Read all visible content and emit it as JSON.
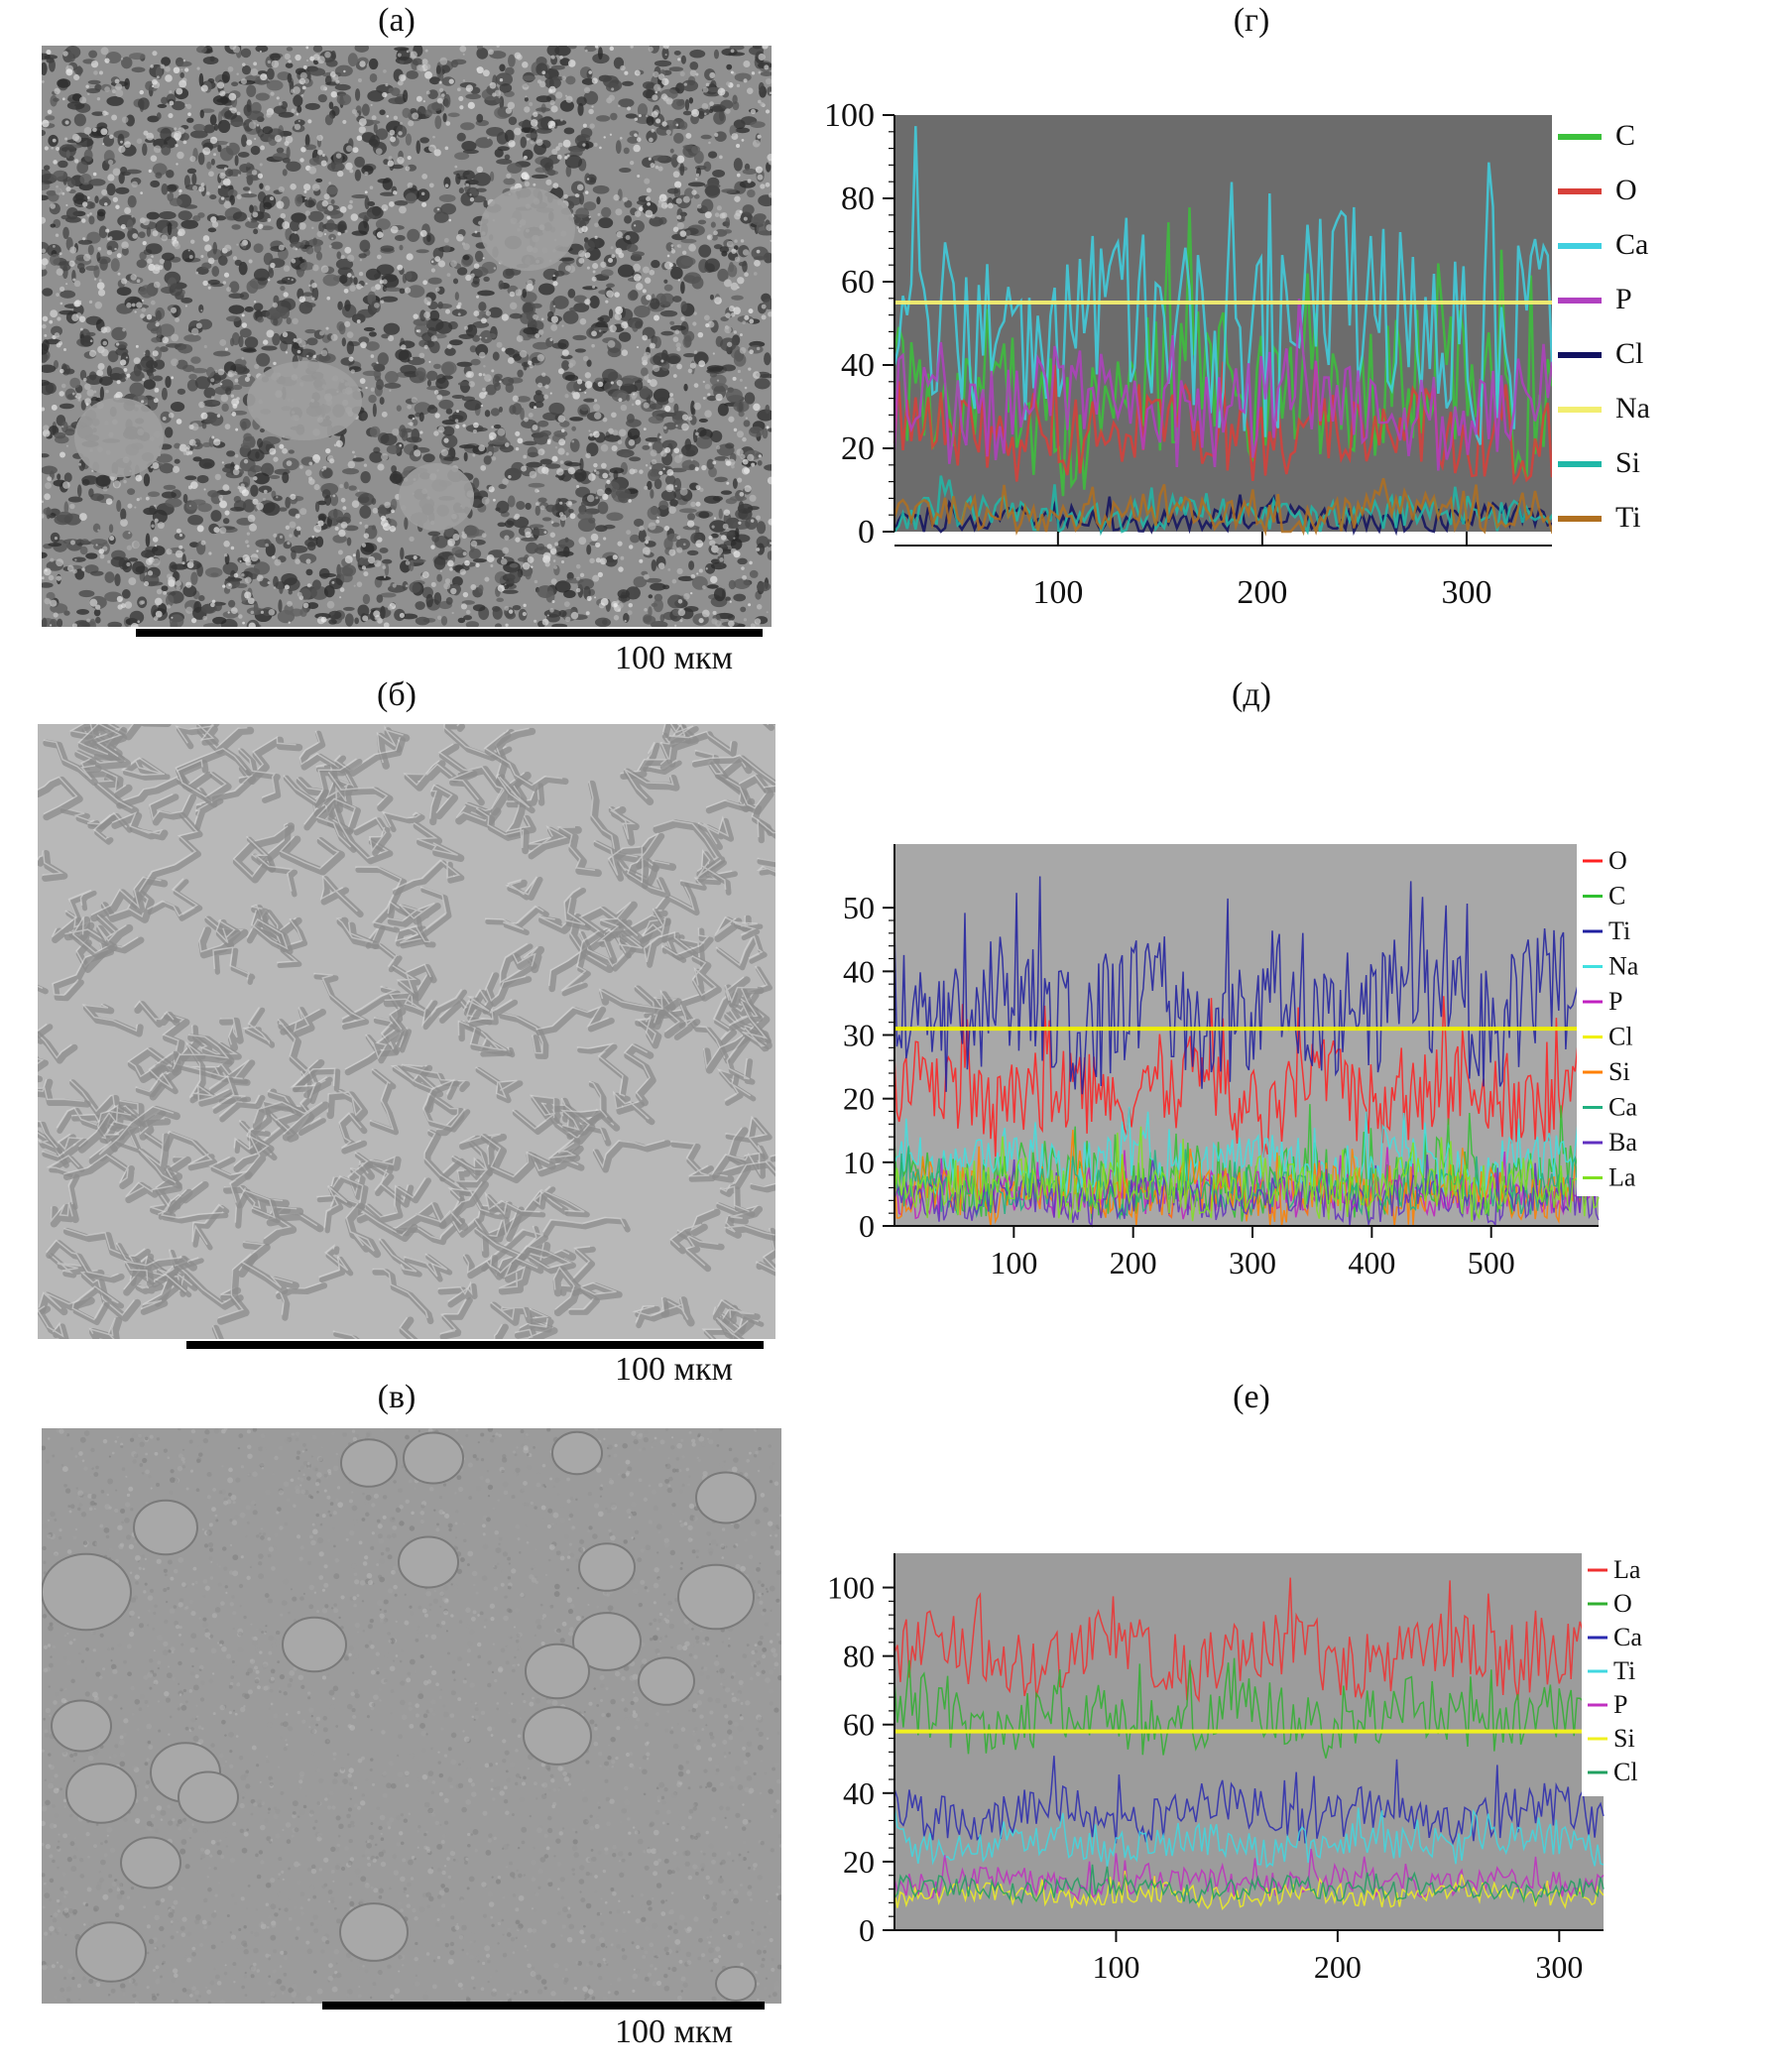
{
  "panels": {
    "a": {
      "label": "(а)",
      "scale": "100 мкм"
    },
    "b": {
      "label": "(б)",
      "scale": "100 мкм"
    },
    "v": {
      "label": "(в)",
      "scale": "100 мкм"
    },
    "g": {
      "label": "(г)"
    },
    "d": {
      "label": "(д)"
    },
    "e": {
      "label": "(е)"
    }
  },
  "chart_data": [
    {
      "panel": "г",
      "type": "line",
      "ylim": [
        0,
        100
      ],
      "xlim": [
        20,
        350
      ],
      "y_ticks": [
        0,
        20,
        40,
        60,
        80,
        100
      ],
      "x_ticks": [
        100,
        200,
        300
      ],
      "legend_position": "right",
      "series": [
        {
          "name": "C",
          "color": "#3cc13c",
          "base": 32,
          "amp": 18
        },
        {
          "name": "O",
          "color": "#d8403a",
          "base": 24,
          "amp": 10
        },
        {
          "name": "Ca",
          "color": "#40d0e0",
          "base": 50,
          "amp": 22
        },
        {
          "name": "P",
          "color": "#b040c0",
          "base": 30,
          "amp": 12
        },
        {
          "name": "Cl",
          "color": "#101060",
          "base": 3,
          "amp": 3
        },
        {
          "name": "Na",
          "color": "#f2ee70",
          "base": 55,
          "amp": 0
        },
        {
          "name": "Si",
          "color": "#20b8a8",
          "base": 4,
          "amp": 4
        },
        {
          "name": "Ti",
          "color": "#b07020",
          "base": 4,
          "amp": 4
        }
      ]
    },
    {
      "panel": "д",
      "type": "line",
      "ylim": [
        0,
        60
      ],
      "xlim": [
        0,
        590
      ],
      "y_ticks": [
        0,
        10,
        20,
        30,
        40,
        50
      ],
      "x_ticks": [
        100,
        200,
        300,
        400,
        500
      ],
      "legend_position": "right",
      "series": [
        {
          "name": "O",
          "color": "#ff2020",
          "base": 20,
          "amp": 7
        },
        {
          "name": "C",
          "color": "#30c030",
          "base": 7,
          "amp": 5
        },
        {
          "name": "Ti",
          "color": "#2020a0",
          "base": 34,
          "amp": 10
        },
        {
          "name": "Na",
          "color": "#40e0e0",
          "base": 10,
          "amp": 4
        },
        {
          "name": "P",
          "color": "#c020c0",
          "base": 5,
          "amp": 3
        },
        {
          "name": "Cl",
          "color": "#f0f000",
          "base": 31,
          "amp": 0
        },
        {
          "name": "Si",
          "color": "#ff8000",
          "base": 5,
          "amp": 4
        },
        {
          "name": "Ca",
          "color": "#20b080",
          "base": 5,
          "amp": 3
        },
        {
          "name": "Ba",
          "color": "#6030c0",
          "base": 4,
          "amp": 3
        },
        {
          "name": "La",
          "color": "#80e020",
          "base": 6,
          "amp": 4
        }
      ]
    },
    {
      "panel": "е",
      "type": "line",
      "ylim": [
        0,
        110
      ],
      "xlim": [
        0,
        320
      ],
      "y_ticks": [
        0,
        20,
        40,
        60,
        80,
        100
      ],
      "x_ticks": [
        100,
        200,
        300
      ],
      "legend_position": "right",
      "series": [
        {
          "name": "La",
          "color": "#f03030",
          "base": 80,
          "amp": 10
        },
        {
          "name": "O",
          "color": "#30b030",
          "base": 62,
          "amp": 9
        },
        {
          "name": "Ca",
          "color": "#2a2ab0",
          "base": 34,
          "amp": 7
        },
        {
          "name": "Ti",
          "color": "#40d8e0",
          "base": 25,
          "amp": 5
        },
        {
          "name": "P",
          "color": "#c030c0",
          "base": 14,
          "amp": 4
        },
        {
          "name": "Si",
          "color": "#f0f020",
          "base": 10,
          "amp": 3
        },
        {
          "name": "Cl",
          "color": "#20a060",
          "base": 12,
          "amp": 3
        }
      ],
      "extra_lines": [
        {
          "color": "#f0f020",
          "y": 58
        }
      ]
    }
  ]
}
